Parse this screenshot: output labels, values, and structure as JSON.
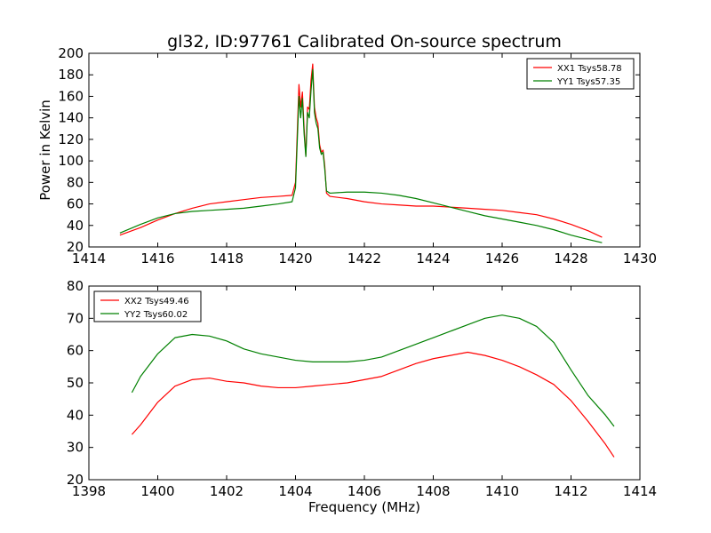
{
  "chart_data": [
    {
      "type": "line",
      "title": "gl32, ID:97761 Calibrated On-source spectrum",
      "xlabel": "",
      "ylabel": "Power in Kelvin",
      "xlim": [
        1414,
        1430
      ],
      "ylim": [
        20,
        200
      ],
      "xticks": [
        "1414",
        "1416",
        "1418",
        "1420",
        "1422",
        "1424",
        "1426",
        "1428",
        "1430"
      ],
      "yticks": [
        "20",
        "40",
        "60",
        "80",
        "100",
        "120",
        "140",
        "160",
        "180",
        "200"
      ],
      "legend_position": "top-right",
      "grid": false,
      "series": [
        {
          "name": "XX1 Tsys58.78",
          "color": "#ff0000",
          "x": [
            1414.9,
            1415.5,
            1416.0,
            1416.5,
            1417.0,
            1417.5,
            1418.0,
            1418.5,
            1419.0,
            1419.5,
            1419.9,
            1420.0,
            1420.1,
            1420.15,
            1420.2,
            1420.25,
            1420.3,
            1420.35,
            1420.4,
            1420.45,
            1420.5,
            1420.55,
            1420.6,
            1420.65,
            1420.7,
            1420.75,
            1420.8,
            1420.85,
            1420.9,
            1421.0,
            1421.5,
            1422.0,
            1422.5,
            1423.0,
            1423.5,
            1424.0,
            1424.5,
            1425.0,
            1425.5,
            1426.0,
            1426.5,
            1427.0,
            1427.5,
            1428.0,
            1428.5,
            1428.9
          ],
          "y": [
            31,
            38,
            45,
            51,
            56,
            60,
            62,
            64,
            66,
            67,
            68,
            80,
            171,
            150,
            164,
            130,
            105,
            150,
            148,
            175,
            190,
            150,
            140,
            135,
            115,
            108,
            110,
            95,
            70,
            67,
            65,
            62,
            60,
            59,
            58,
            58,
            57,
            56,
            55,
            54,
            52,
            50,
            46,
            41,
            35,
            29
          ]
        },
        {
          "name": "YY1 Tsys57.35",
          "color": "#008000",
          "x": [
            1414.9,
            1415.5,
            1416.0,
            1416.5,
            1417.0,
            1417.5,
            1418.0,
            1418.5,
            1419.0,
            1419.5,
            1419.9,
            1420.0,
            1420.1,
            1420.15,
            1420.2,
            1420.25,
            1420.3,
            1420.35,
            1420.4,
            1420.45,
            1420.5,
            1420.55,
            1420.6,
            1420.65,
            1420.7,
            1420.75,
            1420.8,
            1420.85,
            1420.9,
            1421.0,
            1421.5,
            1422.0,
            1422.5,
            1423.0,
            1423.5,
            1424.0,
            1424.5,
            1425.0,
            1425.5,
            1426.0,
            1426.5,
            1427.0,
            1427.5,
            1428.0,
            1428.5,
            1428.9
          ],
          "y": [
            33,
            41,
            47,
            51,
            53,
            54,
            55,
            56,
            58,
            60,
            62,
            75,
            160,
            140,
            158,
            125,
            104,
            145,
            140,
            165,
            185,
            145,
            135,
            130,
            112,
            106,
            108,
            92,
            72,
            70,
            71,
            71,
            70,
            68,
            65,
            61,
            57,
            53,
            49,
            46,
            43,
            40,
            36,
            31,
            27,
            24
          ]
        }
      ]
    },
    {
      "type": "line",
      "title": "",
      "xlabel": "Frequency (MHz)",
      "ylabel": "",
      "xlim": [
        1398,
        1414
      ],
      "ylim": [
        20,
        80
      ],
      "xticks": [
        "1398",
        "1400",
        "1402",
        "1404",
        "1406",
        "1408",
        "1410",
        "1412",
        "1414"
      ],
      "yticks": [
        "20",
        "30",
        "40",
        "50",
        "60",
        "70",
        "80"
      ],
      "legend_position": "top-left",
      "grid": false,
      "series": [
        {
          "name": "XX2 Tsys49.46",
          "color": "#ff0000",
          "x": [
            1399.25,
            1399.5,
            1400.0,
            1400.5,
            1401.0,
            1401.5,
            1402.0,
            1402.5,
            1403.0,
            1403.5,
            1404.0,
            1404.5,
            1405.0,
            1405.5,
            1406.0,
            1406.5,
            1407.0,
            1407.5,
            1408.0,
            1408.5,
            1409.0,
            1409.5,
            1410.0,
            1410.5,
            1411.0,
            1411.5,
            1412.0,
            1412.5,
            1413.0,
            1413.25
          ],
          "y": [
            34,
            37,
            44,
            49,
            51,
            51.5,
            50.5,
            50,
            49,
            48.5,
            48.5,
            49,
            49.5,
            50,
            51,
            52,
            54,
            56,
            57.5,
            58.5,
            59.5,
            58.5,
            57,
            55,
            52.5,
            49.5,
            44.5,
            38,
            31,
            27
          ]
        },
        {
          "name": "YY2 Tsys60.02",
          "color": "#008000",
          "x": [
            1399.25,
            1399.5,
            1400.0,
            1400.5,
            1401.0,
            1401.5,
            1402.0,
            1402.5,
            1403.0,
            1403.5,
            1404.0,
            1404.5,
            1405.0,
            1405.5,
            1406.0,
            1406.5,
            1407.0,
            1407.5,
            1408.0,
            1408.5,
            1409.0,
            1409.5,
            1410.0,
            1410.5,
            1411.0,
            1411.5,
            1412.0,
            1412.5,
            1413.0,
            1413.25
          ],
          "y": [
            47,
            52,
            59,
            64,
            65,
            64.5,
            63,
            60.5,
            59,
            58,
            57,
            56.5,
            56.5,
            56.5,
            57,
            58,
            60,
            62,
            64,
            66,
            68,
            70,
            71,
            70,
            67.5,
            62.5,
            54,
            46,
            40,
            36.5
          ]
        }
      ]
    }
  ]
}
